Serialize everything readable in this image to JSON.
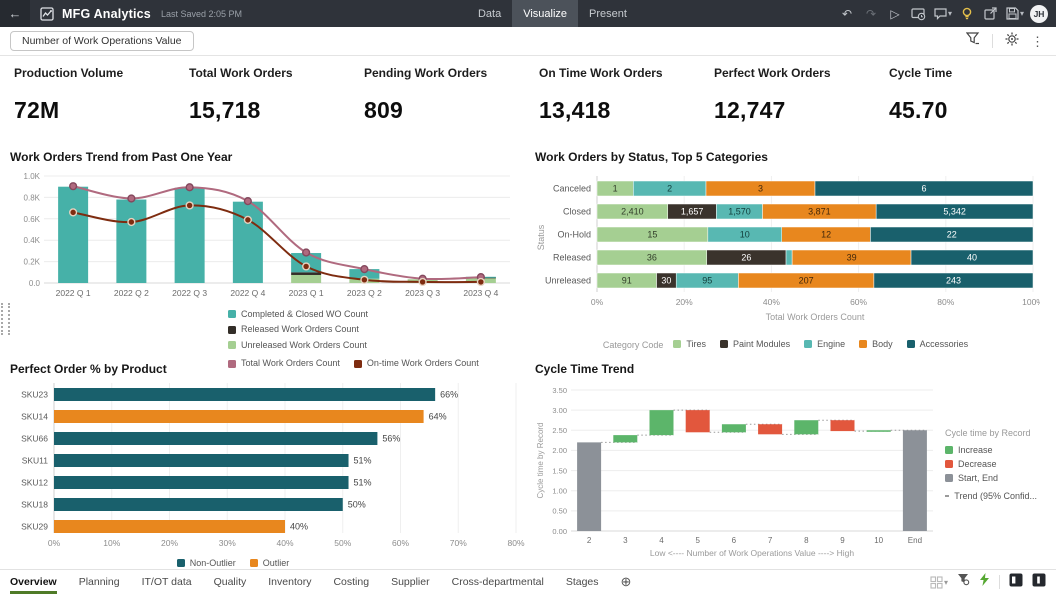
{
  "topbar": {
    "title": "MFG Analytics",
    "last_saved": "Last Saved 2:05 PM",
    "tabs": [
      {
        "label": "Data",
        "active": false
      },
      {
        "label": "Visualize",
        "active": true
      },
      {
        "label": "Present",
        "active": false
      }
    ],
    "avatar_initials": "JH"
  },
  "glyphs": {
    "back_arrow": "←",
    "undo": "↶",
    "redo": "↷",
    "play": "▷",
    "caret_down": "▾",
    "kebab": "⋮",
    "plus_circle": "⊕"
  },
  "filter_bar": {
    "control_label": "Number of Work Operations Value"
  },
  "kpis": [
    {
      "label": "Production Volume",
      "value": "72M"
    },
    {
      "label": "Total Work Orders",
      "value": "15,718"
    },
    {
      "label": "Pending Work Orders",
      "value": "809"
    },
    {
      "label": "On Time Work Orders",
      "value": "13,418"
    },
    {
      "label": "Perfect Work Orders",
      "value": "12,747"
    },
    {
      "label": "Cycle Time",
      "value": "45.70"
    }
  ],
  "chart_data": [
    {
      "id": "work_orders_trend",
      "type": "bar-line-combo",
      "title": "Work Orders Trend from Past One Year",
      "categories": [
        "2022 Q 1",
        "2022 Q 2",
        "2022 Q 3",
        "2022 Q 4",
        "2023 Q 1",
        "2023 Q 2",
        "2023 Q 3",
        "2023 Q 4"
      ],
      "bar_series": [
        {
          "name": "Completed & Closed WO Count",
          "color": "#46b1a8",
          "values": [
            900,
            780,
            890,
            760,
            180,
            90,
            0,
            5
          ]
        },
        {
          "name": "Released Work Orders Count",
          "color": "#332e28",
          "values": [
            0,
            0,
            0,
            0,
            25,
            0,
            0,
            8
          ]
        },
        {
          "name": "Unreleased Work Orders Count",
          "color": "#a5cf92",
          "values": [
            0,
            0,
            0,
            0,
            75,
            40,
            35,
            45
          ]
        }
      ],
      "line_series": [
        {
          "name": "Total Work Orders Count",
          "color": "#b06a7f",
          "values": [
            905,
            790,
            895,
            765,
            285,
            130,
            40,
            55
          ]
        },
        {
          "name": "On-time Work Orders Count",
          "color": "#7e2c10",
          "values": [
            660,
            570,
            725,
            590,
            155,
            30,
            10,
            10
          ]
        }
      ],
      "ylim": [
        0,
        1000
      ],
      "yticks": [
        "0.0",
        "0.2K",
        "0.4K",
        "0.6K",
        "0.8K",
        "1.0K"
      ],
      "grid": true
    },
    {
      "id": "work_orders_by_status",
      "type": "stacked-bar-100",
      "title": "Work Orders by Status, Top 5 Categories",
      "y_axis_label": "Status",
      "x_axis_label": "Total Work Orders Count",
      "xticks": [
        "0%",
        "20%",
        "40%",
        "60%",
        "80%",
        "100%"
      ],
      "legend_title": "Category Code",
      "series": [
        {
          "name": "Tires",
          "color": "#a5cf92",
          "text_color": "#313d29"
        },
        {
          "name": "Paint Modules",
          "color": "#3a332c",
          "text_color": "#ffffff"
        },
        {
          "name": "Engine",
          "color": "#58b8b2",
          "text_color": "#123d3a"
        },
        {
          "name": "Body",
          "color": "#e8871e",
          "text_color": "#43280a"
        },
        {
          "name": "Accessories",
          "color": "#19606c",
          "text_color": "#ffffff"
        }
      ],
      "rows": [
        {
          "status": "Canceled",
          "values": [
            1,
            0,
            2,
            3,
            6
          ]
        },
        {
          "status": "Closed",
          "values": [
            2410,
            1657,
            1570,
            3871,
            5342
          ]
        },
        {
          "status": "On-Hold",
          "values": [
            15,
            0,
            10,
            12,
            22
          ]
        },
        {
          "status": "Released",
          "values": [
            36,
            26,
            2,
            39,
            40
          ]
        },
        {
          "status": "Unreleased",
          "values": [
            91,
            30,
            95,
            207,
            243
          ]
        }
      ]
    },
    {
      "id": "perfect_order_by_product",
      "type": "bar-horizontal",
      "title": "Perfect Order % by Product",
      "categories": [
        "SKU23",
        "SKU14",
        "SKU66",
        "SKU11",
        "SKU12",
        "SKU18",
        "SKU29"
      ],
      "values": [
        66,
        64,
        56,
        51,
        51,
        50,
        40
      ],
      "outlier": [
        false,
        true,
        false,
        false,
        false,
        false,
        true
      ],
      "value_labels": [
        "66%",
        "64%",
        "56%",
        "51%",
        "51%",
        "50%",
        "40%"
      ],
      "xlim": [
        0,
        80
      ],
      "xticks": [
        "0%",
        "10%",
        "20%",
        "30%",
        "40%",
        "50%",
        "60%",
        "70%",
        "80%"
      ],
      "legend": [
        {
          "name": "Non-Outlier",
          "color": "#19606c"
        },
        {
          "name": "Outlier",
          "color": "#e8871e"
        }
      ]
    },
    {
      "id": "cycle_time_trend",
      "type": "waterfall",
      "title": "Cycle Time Trend",
      "y_axis_label": "Cycle time by Record",
      "x_axis_label": "Low <---- Number of Work Operations Value ----> High",
      "ylim": [
        0,
        3.5
      ],
      "yticks": [
        "0.00",
        "0.50",
        "1.00",
        "1.50",
        "2.00",
        "2.50",
        "3.00",
        "3.50"
      ],
      "steps": [
        {
          "label": "2",
          "type": "start",
          "from": 0,
          "to": 2.2
        },
        {
          "label": "3",
          "type": "increase",
          "from": 2.2,
          "to": 2.38
        },
        {
          "label": "4",
          "type": "increase",
          "from": 2.38,
          "to": 3.0
        },
        {
          "label": "5",
          "type": "decrease",
          "from": 3.0,
          "to": 2.45
        },
        {
          "label": "6",
          "type": "increase",
          "from": 2.45,
          "to": 2.65
        },
        {
          "label": "7",
          "type": "decrease",
          "from": 2.65,
          "to": 2.4
        },
        {
          "label": "8",
          "type": "increase",
          "from": 2.4,
          "to": 2.75
        },
        {
          "label": "9",
          "type": "decrease",
          "from": 2.75,
          "to": 2.48
        },
        {
          "label": "10",
          "type": "increase",
          "from": 2.48,
          "to": 2.5
        },
        {
          "label": "End",
          "type": "end",
          "from": 0,
          "to": 2.5
        }
      ],
      "colors": {
        "increase": "#5cb56a",
        "decrease": "#e2573d",
        "start_end": "#8c9198"
      },
      "legend_title": "Cycle time by Record",
      "legend": [
        {
          "name": "Increase",
          "color": "#5cb56a"
        },
        {
          "name": "Decrease",
          "color": "#e2573d"
        },
        {
          "name": "Start, End",
          "color": "#8c9198"
        },
        {
          "name": "Trend (95% Confid...",
          "style": "dotted"
        }
      ]
    }
  ],
  "bottom_tabs": {
    "items": [
      {
        "label": "Overview",
        "active": true
      },
      {
        "label": "Planning",
        "active": false
      },
      {
        "label": "IT/OT data",
        "active": false
      },
      {
        "label": "Quality",
        "active": false
      },
      {
        "label": "Inventory",
        "active": false
      },
      {
        "label": "Costing",
        "active": false
      },
      {
        "label": "Supplier",
        "active": false
      },
      {
        "label": "Cross-departmental",
        "active": false
      },
      {
        "label": "Stages",
        "active": false
      }
    ]
  }
}
